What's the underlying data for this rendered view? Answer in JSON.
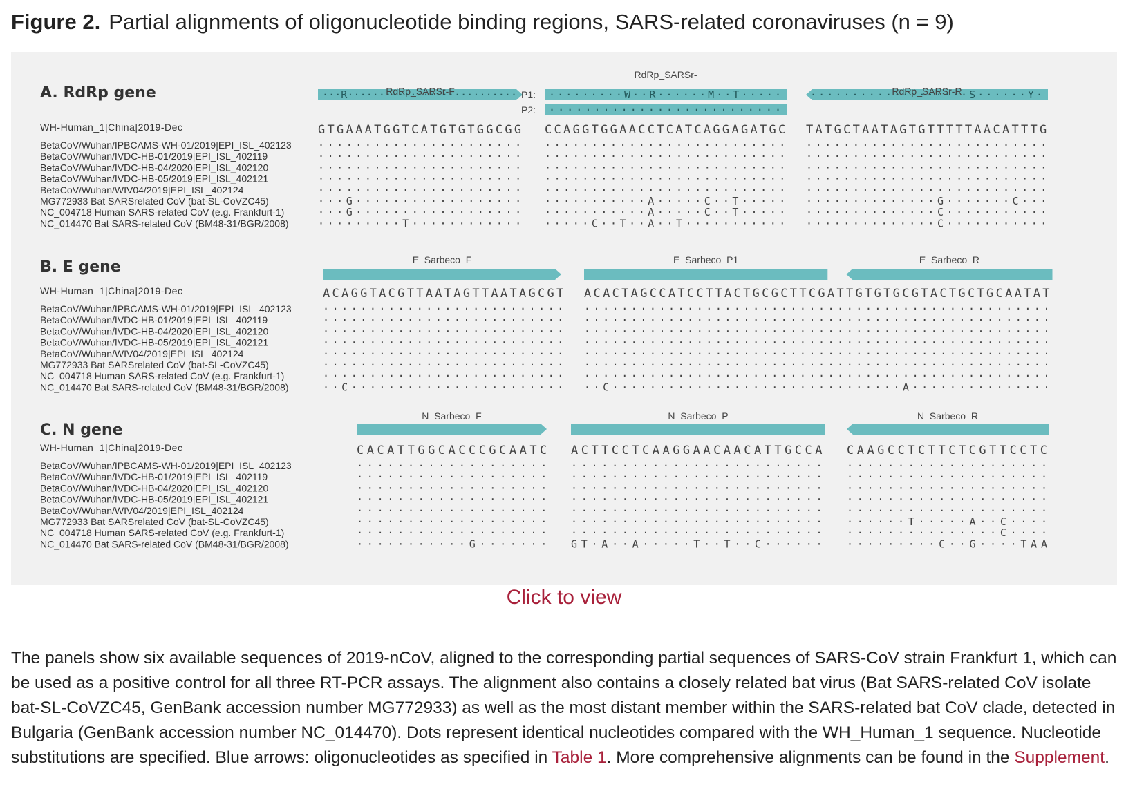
{
  "figure": {
    "label": "Figure 2.",
    "title": "Partial alignments of oligonucleotide binding regions, SARS-related coronaviruses (n = 9)",
    "arrow_color": "#6bbcbf",
    "panels": [
      {
        "heading": "A. RdRp gene",
        "labels": [
          "WH-Human_1|China|2019-Dec",
          "BetaCoV/Wuhan/IPBCAMS-WH-01/2019|EPI_ISL_402123",
          "BetaCoV/Wuhan/IVDC-HB-01/2019|EPI_ISL_402119",
          "BetaCoV/Wuhan/IVDC-HB-04/2020|EPI_ISL_402120",
          "BetaCoV/Wuhan/IVDC-HB-05/2019|EPI_ISL_402121",
          "BetaCoV/Wuhan/WIV04/2019|EPI_ISL_402124",
          "MG772933 Bat SARSrelated CoV (bat-SL-CoVZC45)",
          "NC_004718 Human SARS-related CoV (e.g. Frankfurt-1)",
          "NC_014470 Bat SARS-related CoV (BM48-31/BGR/2008)"
        ],
        "blocks": [
          {
            "primers": [
              {
                "name": "RdRp_SARSr-F",
                "direction": "forward",
                "text": "···R···························"
              }
            ],
            "ref": "GTGAAATGGTCATGTGTGGCGG",
            "rows": [
              "······················",
              "······················",
              "······················",
              "······················",
              "······················",
              "···G··················",
              "···G··················",
              "·········T············"
            ]
          },
          {
            "probe_name": "RdRp_SARSr-",
            "primers": [
              {
                "prefix": "P1:",
                "direction": "none",
                "text": "·········W··R······M··T·····"
              },
              {
                "prefix": "P2:",
                "direction": "none",
                "text": "··························"
              }
            ],
            "ref": "CCAGGTGGAACCTCATCAGGAGATGC",
            "rows": [
              "··························",
              "··························",
              "··························",
              "··························",
              "··························",
              "···········A·····C··T·····",
              "···········A·····C··T·····",
              "·····C··T··A··T···········"
            ]
          },
          {
            "primers": [
              {
                "name": "RdRp_SARSr-R",
                "direction": "reverse",
                "text": "···················S······Y·"
              }
            ],
            "ref": "TATGCTAATAGTGTTTTTAACATTTG",
            "rows": [
              "··························",
              "··························",
              "··························",
              "··························",
              "··························",
              "··············G·······C···",
              "··············C···········",
              "··············C···········"
            ]
          }
        ]
      },
      {
        "heading": "B. E gene",
        "labels": [
          "WH-Human_1|China|2019-Dec",
          "BetaCoV/Wuhan/IPBCAMS-WH-01/2019|EPI_ISL_402123",
          "BetaCoV/Wuhan/IVDC-HB-01/2019|EPI_ISL_402119",
          "BetaCoV/Wuhan/IVDC-HB-04/2020|EPI_ISL_402120",
          "BetaCoV/Wuhan/IVDC-HB-05/2019|EPI_ISL_402121",
          "BetaCoV/Wuhan/WIV04/2019|EPI_ISL_402124",
          "MG772933 Bat SARSrelated CoV (bat-SL-CoVZC45)",
          "NC_004718 Human SARS-related CoV (e.g. Frankfurt-1)",
          "NC_014470 Bat SARS-related CoV (BM48-31/BGR/2008)"
        ],
        "blocks": [
          {
            "primers": [
              {
                "name": "E_Sarbeco_F",
                "direction": "forward",
                "text": ""
              }
            ],
            "ref": "ACAGGTACGTTAATAGTTAATAGCGT",
            "rows": [
              "··························",
              "··························",
              "··························",
              "··························",
              "··························",
              "··························",
              "··························",
              "··C·······················"
            ]
          },
          {
            "primers": [
              {
                "name": "E_Sarbeco_P1",
                "direction": "none",
                "text": "",
                "span": [
                  0,
                  26
                ]
              },
              {
                "name": "E_Sarbeco_R",
                "direction": "reverse",
                "text": "",
                "span": [
                  28,
                  50
                ]
              }
            ],
            "ref": "ACACTAGCCATCCTTACTGCGCTTCGATTGTGTGCGTACTGCTGCAATAT",
            "rows": [
              "··················································",
              "··················································",
              "··················································",
              "··················································",
              "··················································",
              "··················································",
              "··················································",
              "··C·······························A···············"
            ]
          }
        ]
      },
      {
        "heading": "C. N gene",
        "labels": [
          "WH-Human_1|China|2019-Dec",
          "BetaCoV/Wuhan/IPBCAMS-WH-01/2019|EPI_ISL_402123",
          "BetaCoV/Wuhan/IVDC-HB-01/2019|EPI_ISL_402119",
          "BetaCoV/Wuhan/IVDC-HB-04/2020|EPI_ISL_402120",
          "BetaCoV/Wuhan/IVDC-HB-05/2019|EPI_ISL_402121",
          "BetaCoV/Wuhan/WIV04/2019|EPI_ISL_402124",
          "MG772933 Bat SARSrelated CoV (bat-SL-CoVZC45)",
          "NC_004718 Human SARS-related CoV (e.g. Frankfurt-1)",
          "NC_014470 Bat SARS-related CoV (BM48-31/BGR/2008)"
        ],
        "blocks": [
          {
            "primers": [
              {
                "name": "N_Sarbeco_F",
                "direction": "forward",
                "text": ""
              }
            ],
            "ref": "CACATTGGCACCCGCAATC",
            "rows": [
              "···················",
              "···················",
              "···················",
              "···················",
              "···················",
              "···················",
              "···················",
              "···········G·······"
            ]
          },
          {
            "primers": [
              {
                "name": "N_Sarbeco_P",
                "direction": "none",
                "text": ""
              }
            ],
            "ref": "ACTTCCTCAAGGAACAACATTGCCA",
            "rows": [
              "·························",
              "·························",
              "·························",
              "·························",
              "·························",
              "·························",
              "·························",
              "GT·A··A·····T··T··C······"
            ]
          },
          {
            "primers": [
              {
                "name": "N_Sarbeco_R",
                "direction": "reverse",
                "text": ""
              }
            ],
            "ref": "CAAGCCTCTTCTCGTTCCTC",
            "rows": [
              "····················",
              "····················",
              "····················",
              "····················",
              "····················",
              "······T·····A··C····",
              "···············C····",
              "·········C··G····TAA"
            ]
          }
        ]
      }
    ]
  },
  "link": {
    "label": "Click to view"
  },
  "caption": {
    "part1": "The panels show six available sequences of 2019-nCoV, aligned to the corresponding partial sequences of SARS-CoV strain Frankfurt 1, which can be used as a positive control for all three RT-PCR assays. The alignment also contains a closely related bat virus (Bat SARS-related CoV isolate bat-SL-CoVZC45, GenBank accession number MG772933) as well as the most distant member within the SARS-related bat CoV clade, detected in Bulgaria (GenBank accession number NC_014470). Dots represent identical nucleotides compared with the WH_Human_1 sequence. Nucleotide substitutions are specified. Blue arrows: oligonucleotides as specified in ",
    "table_link": "Table 1",
    "part2": ". More comprehensive alignments can be found in the ",
    "supplement_link": "Supplement",
    "part3": "."
  }
}
